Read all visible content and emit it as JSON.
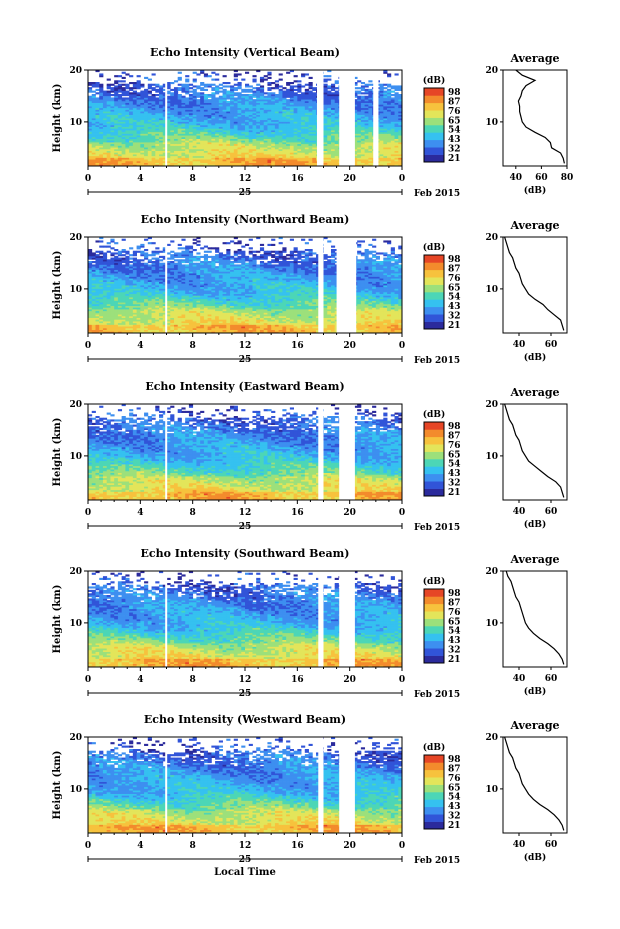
{
  "chart_data": [
    {
      "type": "heatmap",
      "title": "Echo Intensity (Vertical Beam)",
      "ylabel": "Height (km)",
      "yticks": [
        "20",
        "10"
      ],
      "xticks": [
        "0",
        "4",
        "8",
        "12",
        "16",
        "20",
        "0"
      ],
      "date_label": "25",
      "date_suffix": "Feb 2015",
      "xlim": [
        0,
        24
      ],
      "ylim": [
        1.5,
        20
      ],
      "gaps": [
        [
          17.5,
          18.0
        ],
        [
          19.2,
          20.4
        ],
        [
          21.8,
          22.2
        ]
      ],
      "colorbar": {
        "unit": "(dB)",
        "ticks": [
          "98",
          "87",
          "76",
          "65",
          "54",
          "43",
          "32",
          "21"
        ]
      },
      "profile": {
        "title": "Average",
        "xlabel": "(dB)",
        "xticks": [
          "40",
          "60",
          "80"
        ],
        "xlim": [
          30,
          80
        ],
        "yticks": [
          "20",
          "10"
        ],
        "heights": [
          2,
          3,
          4,
          5,
          6,
          7,
          8,
          9,
          10,
          11,
          12,
          13,
          14,
          15,
          16,
          17,
          18,
          19,
          20
        ],
        "values": [
          78,
          77,
          75,
          68,
          67,
          63,
          55,
          48,
          45,
          44,
          43,
          43,
          42,
          44,
          45,
          48,
          55,
          45,
          40
        ]
      }
    },
    {
      "type": "heatmap",
      "title": "Echo Intensity (Northward Beam)",
      "ylabel": "Height (km)",
      "yticks": [
        "20",
        "10"
      ],
      "xticks": [
        "0",
        "4",
        "8",
        "12",
        "16",
        "20",
        "0"
      ],
      "date_label": "25",
      "date_suffix": "Feb 2015",
      "xlim": [
        0,
        24
      ],
      "ylim": [
        1.5,
        20
      ],
      "gaps": [
        [
          17.6,
          18.0
        ],
        [
          19.0,
          20.5
        ]
      ],
      "colorbar": {
        "unit": "(dB)",
        "ticks": [
          "98",
          "87",
          "76",
          "65",
          "54",
          "43",
          "32",
          "21"
        ]
      },
      "profile": {
        "title": "Average",
        "xlabel": "(dB)",
        "xticks": [
          "40",
          "60"
        ],
        "xlim": [
          30,
          70
        ],
        "yticks": [
          "20",
          "10"
        ],
        "heights": [
          2,
          3,
          4,
          5,
          6,
          7,
          8,
          9,
          10,
          11,
          12,
          13,
          14,
          15,
          16,
          17,
          18,
          19,
          20
        ],
        "values": [
          68,
          67,
          66,
          62,
          58,
          55,
          50,
          46,
          44,
          42,
          41,
          40,
          38,
          37,
          36,
          34,
          33,
          32,
          31
        ]
      }
    },
    {
      "type": "heatmap",
      "title": "Echo Intensity (Eastward Beam)",
      "ylabel": "Height (km)",
      "yticks": [
        "20",
        "10"
      ],
      "xticks": [
        "0",
        "4",
        "8",
        "12",
        "16",
        "20",
        "0"
      ],
      "date_label": "25",
      "date_suffix": "Feb 2015",
      "xlim": [
        0,
        24
      ],
      "ylim": [
        1.5,
        20
      ],
      "gaps": [
        [
          17.6,
          18.0
        ],
        [
          19.2,
          20.4
        ]
      ],
      "colorbar": {
        "unit": "(dB)",
        "ticks": [
          "98",
          "87",
          "76",
          "65",
          "54",
          "43",
          "32",
          "21"
        ]
      },
      "profile": {
        "title": "Average",
        "xlabel": "(dB)",
        "xticks": [
          "40",
          "60"
        ],
        "xlim": [
          30,
          70
        ],
        "yticks": [
          "20",
          "10"
        ],
        "heights": [
          2,
          3,
          4,
          5,
          6,
          7,
          8,
          9,
          10,
          11,
          12,
          13,
          14,
          15,
          16,
          17,
          18,
          19,
          20
        ],
        "values": [
          68,
          67,
          66,
          63,
          58,
          54,
          50,
          46,
          44,
          42,
          41,
          40,
          38,
          37,
          36,
          34,
          33,
          32,
          31
        ]
      }
    },
    {
      "type": "heatmap",
      "title": "Echo Intensity (Southward Beam)",
      "ylabel": "Height (km)",
      "yticks": [
        "20",
        "10"
      ],
      "xticks": [
        "0",
        "4",
        "8",
        "12",
        "16",
        "20",
        "0"
      ],
      "date_label": "25",
      "date_suffix": "Feb 2015",
      "xlim": [
        0,
        24
      ],
      "ylim": [
        1.5,
        20
      ],
      "gaps": [
        [
          17.6,
          18.0
        ],
        [
          19.2,
          20.4
        ]
      ],
      "colorbar": {
        "unit": "(dB)",
        "ticks": [
          "98",
          "87",
          "76",
          "65",
          "54",
          "43",
          "32",
          "21"
        ]
      },
      "profile": {
        "title": "Average",
        "xlabel": "(dB)",
        "xticks": [
          "40",
          "60"
        ],
        "xlim": [
          30,
          70
        ],
        "yticks": [
          "20",
          "10"
        ],
        "heights": [
          2,
          3,
          4,
          5,
          6,
          7,
          8,
          9,
          10,
          11,
          12,
          13,
          14,
          15,
          16,
          17,
          18,
          19,
          20
        ],
        "values": [
          68,
          67,
          65,
          62,
          58,
          53,
          49,
          46,
          44,
          43,
          42,
          41,
          40,
          38,
          37,
          36,
          35,
          33,
          32
        ]
      }
    },
    {
      "type": "heatmap",
      "title": "Echo Intensity (Westward Beam)",
      "ylabel": "Height (km)",
      "yticks": [
        "20",
        "10"
      ],
      "xticks": [
        "0",
        "4",
        "8",
        "12",
        "16",
        "20",
        "0"
      ],
      "date_label": "25",
      "date_suffix": "Feb 2015",
      "xlabel": "Local Time",
      "xlim": [
        0,
        24
      ],
      "ylim": [
        1.5,
        20
      ],
      "gaps": [
        [
          17.6,
          18.0
        ],
        [
          19.2,
          20.4
        ]
      ],
      "colorbar": {
        "unit": "(dB)",
        "ticks": [
          "98",
          "87",
          "76",
          "65",
          "54",
          "43",
          "32",
          "21"
        ]
      },
      "profile": {
        "title": "Average",
        "xlabel": "(dB)",
        "xticks": [
          "40",
          "60"
        ],
        "xlim": [
          30,
          70
        ],
        "yticks": [
          "20",
          "10"
        ],
        "heights": [
          2,
          3,
          4,
          5,
          6,
          7,
          8,
          9,
          10,
          11,
          12,
          13,
          14,
          15,
          16,
          17,
          18,
          19,
          20
        ],
        "values": [
          68,
          67,
          65,
          62,
          58,
          53,
          49,
          46,
          44,
          42,
          41,
          40,
          38,
          37,
          36,
          34,
          33,
          32,
          31
        ]
      }
    }
  ],
  "colorscale": [
    "#2b2a9c",
    "#3154d8",
    "#3d8ff0",
    "#35c1f0",
    "#4cd6b6",
    "#9ce07b",
    "#e3e55a",
    "#f7c23d",
    "#f38b2c",
    "#e64626"
  ]
}
